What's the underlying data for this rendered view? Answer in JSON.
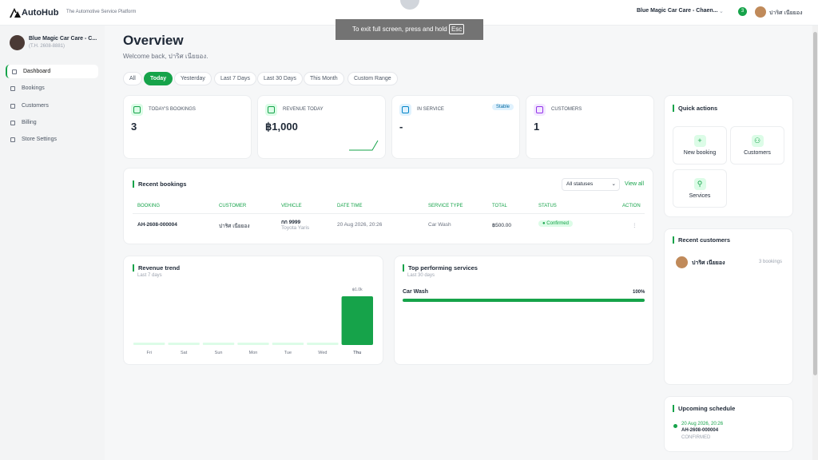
{
  "header": {
    "logo": "AutoHub",
    "tagline": "The Automotive Service Platform",
    "store_selector": "Blue Magic Car Care - Chaen...",
    "notification_count": "3",
    "user_name": "ปาริศ เนียยอง"
  },
  "fullscreen_notice": {
    "text": "To exit full screen, press and hold",
    "key": "Esc"
  },
  "sidebar": {
    "store_name": "Blue Magic Car Care - C...",
    "store_code": "(T.H. 2608-8881)",
    "nav": [
      "Dashboard",
      "Bookings",
      "Customers",
      "Billing",
      "Store Settings"
    ],
    "active": "Dashboard"
  },
  "page": {
    "title": "Overview",
    "welcome": "Welcome back, ปาริศ เนียยอง.",
    "filters": [
      "All",
      "Today",
      "Yesterday",
      "Last 7 Days",
      "Last 30 Days",
      "This Month",
      "Custom Range"
    ],
    "active_filter": "Today"
  },
  "stats": [
    {
      "label": "TODAY'S BOOKINGS",
      "value": "3"
    },
    {
      "label": "REVENUE TODAY",
      "value": "฿1,000"
    },
    {
      "label": "IN SERVICE",
      "value": "-",
      "badge": "Stable"
    },
    {
      "label": "CUSTOMERS",
      "value": "1"
    }
  ],
  "recent_bookings": {
    "title": "Recent bookings",
    "status_filter": "All statuses",
    "view_all": "View all",
    "columns": [
      "BOOKING",
      "CUSTOMER",
      "VEHICLE",
      "DATE TIME",
      "SERVICE TYPE",
      "TOTAL",
      "STATUS",
      "ACTION"
    ],
    "rows": [
      {
        "booking": "AH-2608-000004",
        "customer": "ปาริศ เนียยอง",
        "plate": "กก 9999",
        "model": "Toyota Yaris",
        "datetime": "20 Aug 2026, 20:26",
        "service": "Car Wash",
        "total": "฿500.00",
        "status": "Confirmed",
        "action": "⋮"
      }
    ]
  },
  "revenue_trend": {
    "title": "Revenue trend",
    "subtitle": "Last 7 days",
    "categories": [
      "Fri",
      "Sat",
      "Sun",
      "Mon",
      "Tue",
      "Wed",
      "Thu"
    ],
    "values": [
      0,
      0,
      0,
      0,
      0,
      0,
      1000
    ],
    "value_labels": [
      null,
      null,
      null,
      null,
      null,
      null,
      "฿1.0k"
    ],
    "color": "#16a34a"
  },
  "top_services": {
    "title": "Top performing services",
    "subtitle": "Last 30 days",
    "items": [
      {
        "name": "Car Wash",
        "value": 100,
        "label": "100%"
      }
    ],
    "color": "#16a34a"
  },
  "quick_actions": {
    "title": "Quick actions",
    "items": [
      "New booking",
      "Customers",
      "Services"
    ]
  },
  "recent_customers": {
    "title": "Recent customers",
    "items": [
      {
        "name": "ปาริศ เนียยอง",
        "bookings": "3 bookings"
      }
    ]
  },
  "upcoming_schedule": {
    "title": "Upcoming schedule",
    "items": [
      {
        "datetime": "20 Aug 2026, 20:26",
        "booking": "AH-2608-000004",
        "status": "CONFIRMED"
      }
    ]
  }
}
